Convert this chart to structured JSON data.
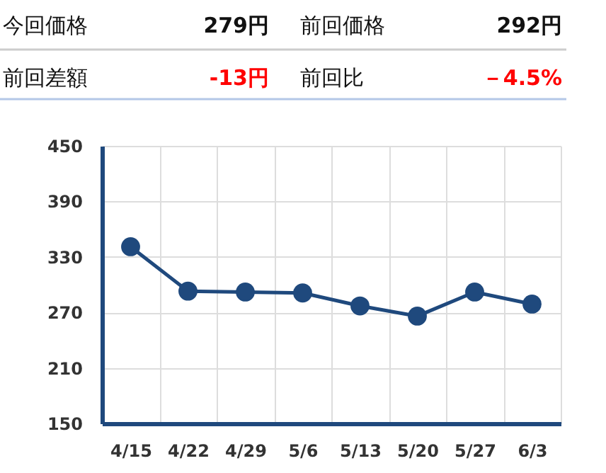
{
  "chart_data": {
    "type": "line",
    "categories": [
      "4/15",
      "4/22",
      "4/29",
      "5/6",
      "5/13",
      "5/20",
      "5/27",
      "6/3"
    ],
    "series": [
      {
        "color": "#1f497d",
        "values": [
          341,
          293,
          292,
          291,
          277,
          266,
          292,
          279
        ]
      }
    ],
    "ylim": [
      150,
      450
    ],
    "yticks": [
      150,
      210,
      270,
      330,
      390,
      450
    ],
    "grid": true,
    "marker": "circle",
    "line_style": "solid",
    "annotations": [
      "今回価格",
      "279円",
      "前回価格",
      "292円",
      "前回差額",
      "-13円",
      "前回比",
      "－4.5%"
    ]
  }
}
